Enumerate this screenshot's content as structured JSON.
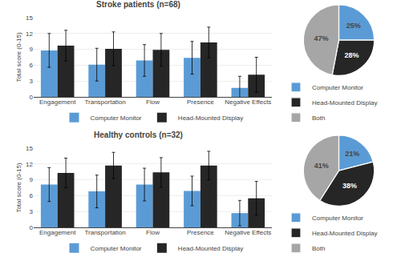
{
  "chart_data": [
    {
      "type": "bar",
      "title": "Stroke patients (n=68)",
      "categories": [
        "Engagement",
        "Transportation",
        "Flow",
        "Presence",
        "Negative Effects"
      ],
      "series": [
        {
          "name": "Computer Monitor",
          "color": "#5b9bd5",
          "values": [
            8.8,
            6.1,
            6.9,
            7.4,
            1.7
          ],
          "errors": [
            3.2,
            3.1,
            3.0,
            3.1,
            2.2
          ]
        },
        {
          "name": "Head-Mounted Display",
          "color": "#262626",
          "values": [
            9.7,
            9.1,
            8.9,
            10.3,
            4.2
          ],
          "errors": [
            2.9,
            3.2,
            3.1,
            2.9,
            3.3
          ]
        }
      ],
      "ylabel": "Total score (0-15)",
      "ylim": [
        0,
        15
      ],
      "yticks": [
        0,
        3,
        6,
        9,
        12,
        15
      ],
      "grid": true,
      "legend": "bottom"
    },
    {
      "type": "pie",
      "categories": [
        "Computer Monitor",
        "Head-Mounted Display",
        "Both"
      ],
      "values": [
        25,
        28,
        47
      ],
      "value_labels": [
        "25%",
        "28%",
        "47%"
      ],
      "colors": [
        "#5b9bd5",
        "#262626",
        "#a6a6a6"
      ],
      "data_labels": true,
      "legend": "bottom left"
    },
    {
      "type": "bar",
      "title": "Healthy controls (n=32)",
      "categories": [
        "Engagement",
        "Transportation",
        "Flow",
        "Presence",
        "Negative Effects"
      ],
      "series": [
        {
          "name": "Computer Monitor",
          "color": "#5b9bd5",
          "values": [
            8.1,
            6.8,
            8.1,
            6.9,
            2.7
          ],
          "errors": [
            3.2,
            3.1,
            3.1,
            2.8,
            2.4
          ]
        },
        {
          "name": "Head-Mounted Display",
          "color": "#262626",
          "values": [
            10.3,
            11.7,
            10.4,
            11.7,
            5.5
          ],
          "errors": [
            2.8,
            2.5,
            2.8,
            2.7,
            3.2
          ]
        }
      ],
      "ylabel": "Total score (0-15)",
      "ylim": [
        0,
        15
      ],
      "yticks": [
        0,
        3,
        6,
        9,
        12,
        15
      ],
      "grid": true,
      "legend": "bottom"
    },
    {
      "type": "pie",
      "categories": [
        "Computer Monitor",
        "Head-Mounted Display",
        "Both"
      ],
      "values": [
        21,
        38,
        41
      ],
      "value_labels": [
        "21%",
        "38%",
        "41%"
      ],
      "colors": [
        "#5b9bd5",
        "#262626",
        "#a6a6a6"
      ],
      "data_labels": true,
      "legend": "bottom left"
    }
  ]
}
